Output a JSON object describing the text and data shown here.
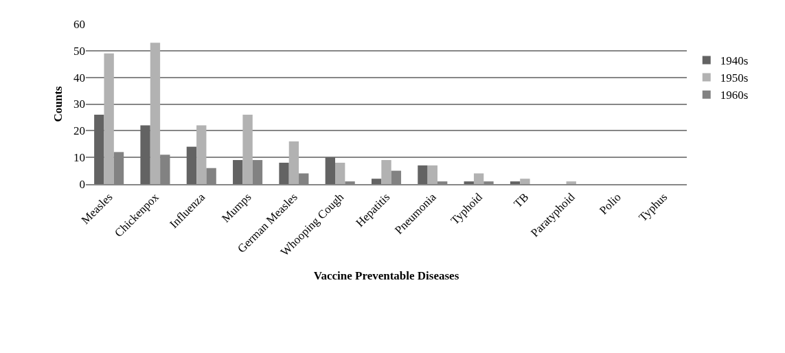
{
  "chart_data": {
    "type": "bar",
    "xlabel": "Vaccine Preventable Diseases",
    "ylabel": "Counts",
    "categories": [
      "Measles",
      "Chickenpox",
      "Influenza",
      "Mumps",
      "German Measles",
      "Whooping Cough",
      "Hepatitis",
      "Pneumonia",
      "Typhoid",
      "TB",
      "Paratyphoid",
      "Polio",
      "Typhus"
    ],
    "series": [
      {
        "name": "1940s",
        "color": "#636363",
        "values": [
          26,
          22,
          14,
          9,
          8,
          10,
          2,
          7,
          1,
          1,
          0,
          0,
          0
        ]
      },
      {
        "name": "1950s",
        "color": "#b2b2b2",
        "values": [
          49,
          53,
          22,
          26,
          16,
          8,
          9,
          7,
          4,
          2,
          1,
          0,
          0
        ]
      },
      {
        "name": "1960s",
        "color": "#828282",
        "values": [
          12,
          11,
          6,
          9,
          4,
          1,
          5,
          1,
          1,
          0,
          0,
          0,
          0
        ]
      }
    ],
    "ylim": [
      0,
      60
    ],
    "yticks": [
      0,
      10,
      20,
      30,
      40,
      50,
      60
    ],
    "grid": "y",
    "legend": "right"
  }
}
